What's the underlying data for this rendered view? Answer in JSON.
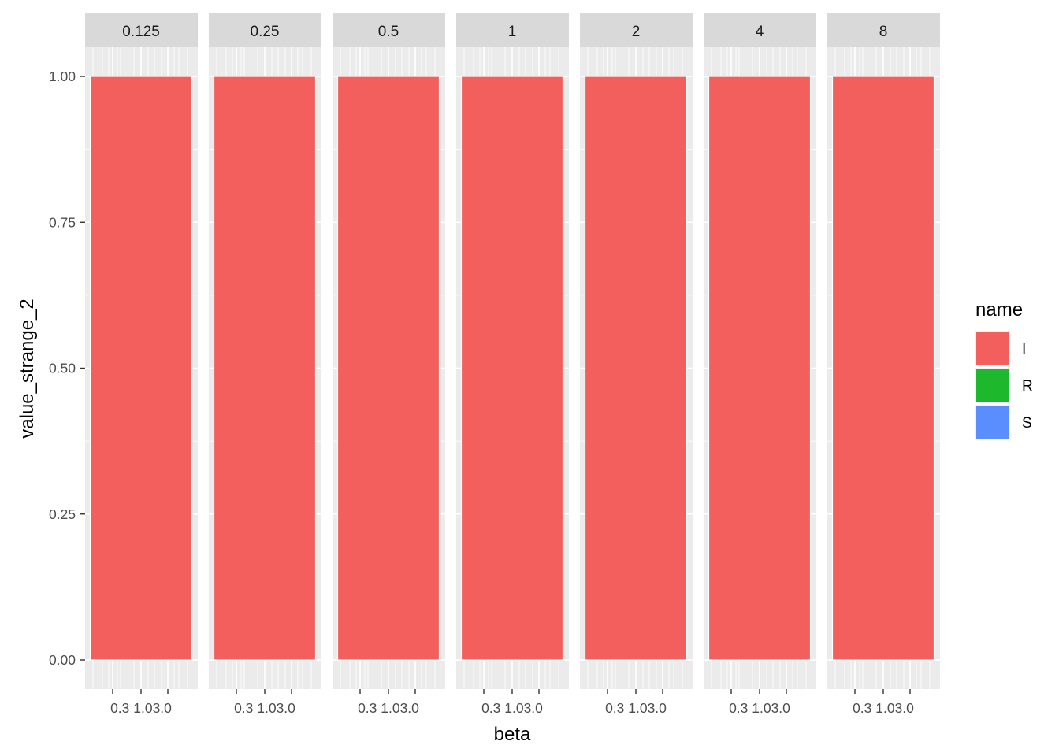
{
  "chart_data": {
    "type": "bar",
    "stacked": true,
    "facet_variable": "",
    "facets": [
      "0.125",
      "0.25",
      "0.5",
      "1",
      "2",
      "4",
      "8"
    ],
    "x": {
      "label": "beta",
      "scale": "log",
      "tick_labels": [
        "0.3",
        "1.0",
        "3.0"
      ],
      "tick_values": [
        0.3,
        1.0,
        3.0
      ]
    },
    "y": {
      "label": "value_strange_2",
      "ylim": [
        0,
        1
      ],
      "tick_labels": [
        "0.00",
        "0.25",
        "0.50",
        "0.75",
        "1.00"
      ],
      "tick_values": [
        0,
        0.25,
        0.5,
        0.75,
        1
      ]
    },
    "legend": {
      "title": "name",
      "position": "right",
      "entries": [
        {
          "label": "I",
          "color": "#F8766D"
        },
        {
          "label": "R",
          "color": "#1DB82C"
        },
        {
          "label": "S",
          "color": "#5A8EFF"
        }
      ]
    },
    "series": [
      {
        "name": "I",
        "values": [
          1,
          1,
          1,
          1,
          1,
          1,
          1
        ]
      },
      {
        "name": "R",
        "values": [
          0,
          0,
          0,
          0,
          0,
          0,
          0
        ]
      },
      {
        "name": "S",
        "values": [
          0,
          0,
          0,
          0,
          0,
          0,
          0
        ]
      }
    ],
    "bar_color": "#F25F5C",
    "grid": true,
    "panel_background": "#EBEBEB",
    "strip_background": "#D9D9D9"
  }
}
